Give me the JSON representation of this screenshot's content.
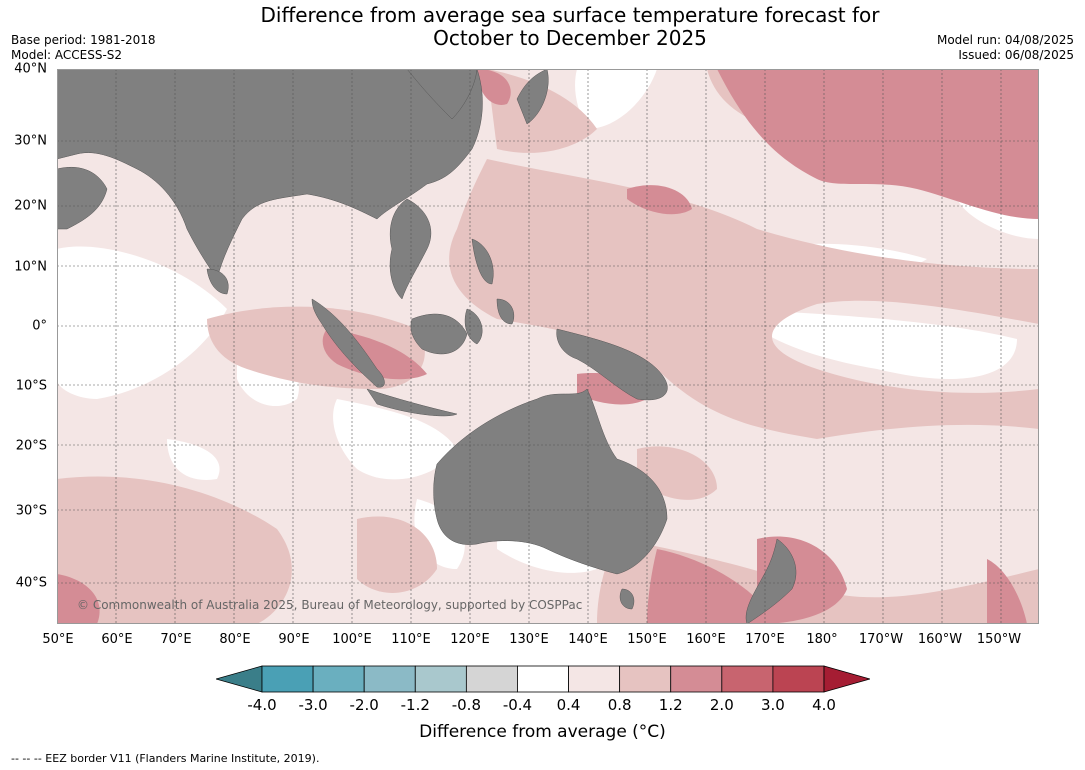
{
  "title_line1": "Difference from average sea surface temperature forecast for",
  "title_line2": "October to December 2025",
  "base_period": "Base period: 1981-2018",
  "model": "Model: ACCESS-S2",
  "model_run": "Model run: 04/08/2025",
  "issued": "Issued: 06/08/2025",
  "lat_labels": [
    "40°N",
    "30°N",
    "20°N",
    "10°N",
    "0°",
    "10°S",
    "20°S",
    "30°S",
    "40°S"
  ],
  "lon_labels": [
    "50°E",
    "60°E",
    "70°E",
    "80°E",
    "90°E",
    "100°E",
    "110°E",
    "120°E",
    "130°E",
    "140°E",
    "150°E",
    "160°E",
    "170°E",
    "180°",
    "170°W",
    "160°W",
    "150°W"
  ],
  "credit": "© Commonwealth of Australia 2025, Bureau of Meteorology, supported by COSPPac",
  "colorbar": {
    "ticks": [
      "-4.0",
      "-3.0",
      "-2.0",
      "-1.2",
      "-0.8",
      "-0.4",
      "0.4",
      "0.8",
      "1.2",
      "2.0",
      "3.0",
      "4.0"
    ],
    "colors": [
      "#3a7e89",
      "#4aa0b5",
      "#6aafbf",
      "#8bbac6",
      "#a9c8cd",
      "#d5d5d5",
      "#ffffff",
      "#f4e6e5",
      "#e6c3c1",
      "#d48c95",
      "#c8646f",
      "#bb4452",
      "#a51d33"
    ],
    "title": "Difference from average (°C)"
  },
  "eez_note": "--  --  -- EEZ border V11 (Flanders Marine Institute, 2019)."
}
